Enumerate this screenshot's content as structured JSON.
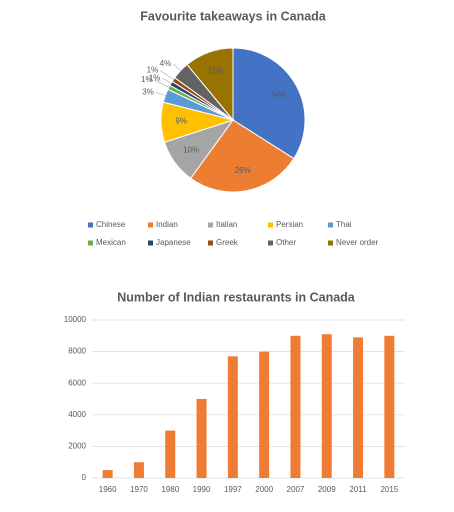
{
  "chart_data": [
    {
      "type": "pie",
      "title": "Favourite takeaways in Canada",
      "categories": [
        "Chinese",
        "Indian",
        "Italian",
        "Persian",
        "Thai",
        "Mexican",
        "Japanese",
        "Greek",
        "Other",
        "Never order"
      ],
      "values": [
        34,
        26,
        10,
        9,
        3,
        1,
        1,
        1,
        4,
        11
      ],
      "value_labels": [
        "34%",
        "26%",
        "10%",
        "9%",
        "3%",
        "1%",
        "1%",
        "1%",
        "4%",
        "11%"
      ],
      "colors": [
        "#4472c4",
        "#ed7d31",
        "#a5a5a5",
        "#ffc000",
        "#5b9bd5",
        "#70ad47",
        "#264478",
        "#9e480e",
        "#636363",
        "#997300"
      ],
      "legend": "bottom"
    },
    {
      "type": "bar",
      "title": "Number of Indian restaurants in Canada",
      "categories": [
        "1960",
        "1970",
        "1980",
        "1990",
        "1997",
        "2000",
        "2007",
        "2009",
        "2011",
        "2015"
      ],
      "values": [
        500,
        1000,
        3000,
        5000,
        7700,
        8000,
        9000,
        9100,
        8900,
        9000
      ],
      "color": "#ed7d31",
      "ylim": [
        0,
        10000
      ],
      "yticks": [
        0,
        2000,
        4000,
        6000,
        8000,
        10000
      ],
      "grid": true
    }
  ]
}
